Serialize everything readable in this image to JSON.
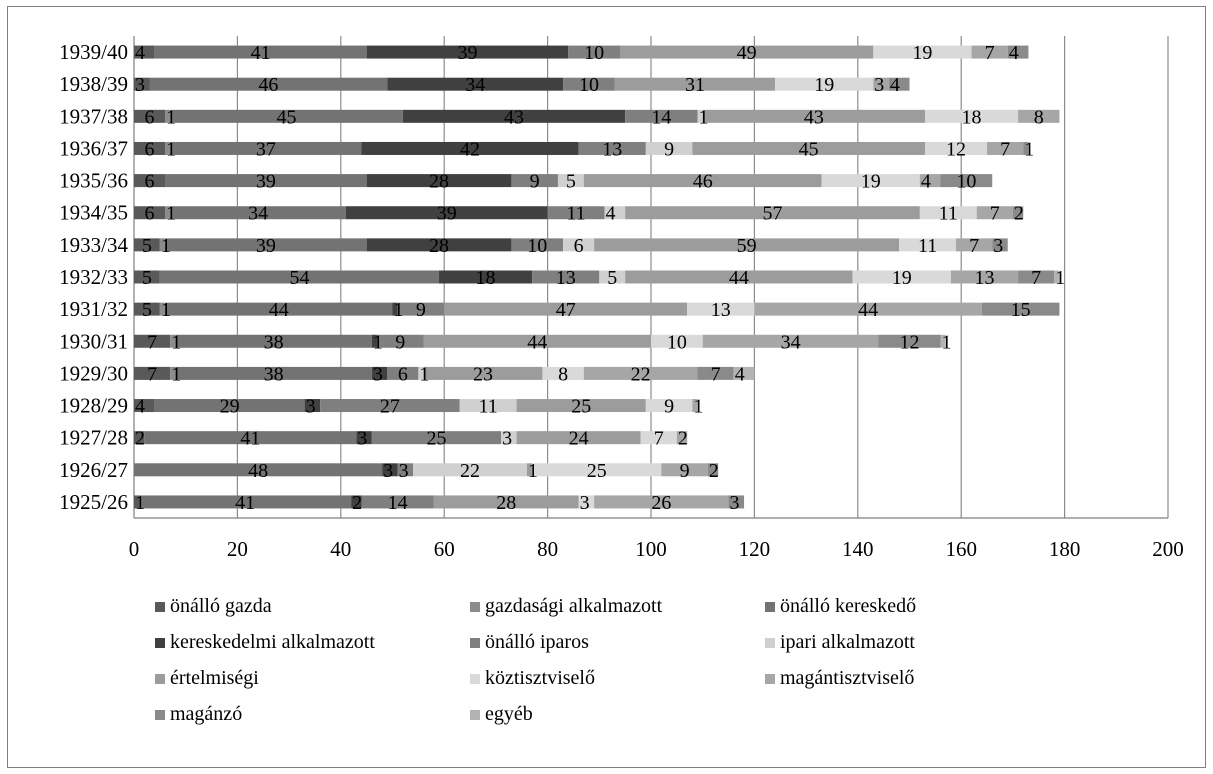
{
  "chart_data": {
    "type": "bar",
    "orientation": "horizontal",
    "stacked": true,
    "categories": [
      "1939/40",
      "1938/39",
      "1937/38",
      "1936/37",
      "1935/36",
      "1934/35",
      "1933/34",
      "1932/33",
      "1931/32",
      "1930/31",
      "1929/30",
      "1928/29",
      "1927/28",
      "1926/27",
      "1925/26"
    ],
    "xlim": [
      0,
      200
    ],
    "x_ticks": [
      "0",
      "20",
      "40",
      "60",
      "80",
      "100",
      "120",
      "140",
      "160",
      "180",
      "200"
    ],
    "grid": "vertical",
    "legend_position": "bottom",
    "series": [
      {
        "name": "önálló gazda",
        "color": "#595959",
        "values": [
          4,
          3,
          6,
          6,
          6,
          6,
          5,
          5,
          5,
          7,
          7,
          4,
          2,
          0,
          1
        ]
      },
      {
        "name": "gazdasági alkalmazott",
        "color": "#8c8c8c",
        "values": [
          0,
          0,
          1,
          1,
          0,
          1,
          1,
          0,
          1,
          1,
          1,
          0,
          0,
          0,
          0
        ]
      },
      {
        "name": "önálló kereskedő",
        "color": "#737373",
        "values": [
          41,
          46,
          45,
          37,
          39,
          34,
          39,
          54,
          44,
          38,
          38,
          29,
          41,
          48,
          41
        ]
      },
      {
        "name": "kereskedelmi alkalmazott",
        "color": "#404040",
        "values": [
          39,
          34,
          43,
          42,
          28,
          39,
          28,
          18,
          1,
          1,
          3,
          3,
          3,
          3,
          2
        ]
      },
      {
        "name": "önálló iparos",
        "color": "#7f7f7f",
        "values": [
          10,
          10,
          14,
          13,
          9,
          11,
          10,
          13,
          9,
          9,
          6,
          27,
          25,
          3,
          14
        ]
      },
      {
        "name": "ipari alkalmazott",
        "color": "#d0d0d0",
        "values": [
          0,
          0,
          1,
          9,
          5,
          4,
          6,
          5,
          0,
          0,
          1,
          11,
          3,
          22,
          0
        ]
      },
      {
        "name": "értelmiségi",
        "color": "#9c9c9c",
        "values": [
          49,
          31,
          43,
          45,
          46,
          57,
          59,
          44,
          47,
          44,
          23,
          25,
          24,
          1,
          28
        ]
      },
      {
        "name": "köztisztviselő",
        "color": "#d9d9d9",
        "values": [
          19,
          19,
          18,
          12,
          19,
          11,
          11,
          19,
          13,
          10,
          8,
          9,
          7,
          25,
          3
        ]
      },
      {
        "name": "magántisztviselő",
        "color": "#a6a6a6",
        "values": [
          7,
          3,
          8,
          7,
          4,
          7,
          7,
          13,
          44,
          34,
          22,
          1,
          2,
          9,
          26
        ]
      },
      {
        "name": "magánzó",
        "color": "#8a8a8a",
        "values": [
          4,
          4,
          0,
          1,
          10,
          2,
          3,
          7,
          15,
          12,
          7,
          0,
          0,
          2,
          3
        ]
      },
      {
        "name": "egyéb",
        "color": "#b3b3b3",
        "values": [
          0,
          0,
          0,
          0,
          0,
          0,
          0,
          1,
          0,
          1,
          4,
          0,
          0,
          0,
          0
        ]
      }
    ],
    "labels": [
      [
        "4",
        "41",
        "39",
        "10",
        "49",
        "19",
        "7",
        "4"
      ],
      [
        "3",
        "46",
        "34",
        "10",
        "31",
        "19",
        "3",
        "4"
      ],
      [
        "6",
        "1",
        "45",
        "43",
        "14",
        "1",
        "43",
        "18",
        "8"
      ],
      [
        "6",
        "1",
        "37",
        "42",
        "13",
        "9",
        "45",
        "12",
        "7",
        "1"
      ],
      [
        "6",
        "39",
        "28",
        "9",
        "5",
        "46",
        "19",
        "4",
        "10"
      ],
      [
        "6",
        "1",
        "34",
        "39",
        "11",
        "4",
        "57",
        "11",
        "7",
        "2"
      ],
      [
        "5",
        "1",
        "39",
        "28",
        "10",
        "6",
        "59",
        "11",
        "7",
        "3"
      ],
      [
        "5",
        "54",
        "18",
        "13",
        "5",
        "44",
        "19",
        "13",
        "7",
        "1"
      ],
      [
        "5",
        "1",
        "44",
        "1",
        "9",
        "47",
        "13",
        "44",
        "15"
      ],
      [
        "7",
        "1",
        "38",
        "1",
        "9",
        "44",
        "10",
        "34",
        "12",
        "1"
      ],
      [
        "7",
        "1",
        "38",
        "3",
        "6",
        "1",
        "23",
        "8",
        "22",
        "7",
        "4"
      ],
      [
        "4",
        "29",
        "3",
        "27",
        "11",
        "25",
        "9",
        "1"
      ],
      [
        "2",
        "41",
        "3",
        "25",
        "3",
        "24",
        "7",
        "2"
      ],
      [
        "48",
        "3",
        "3",
        "22",
        "1",
        "25",
        "9",
        "2"
      ],
      [
        "1",
        "41",
        "2",
        "14",
        "28",
        "3",
        "26",
        "3"
      ]
    ]
  }
}
